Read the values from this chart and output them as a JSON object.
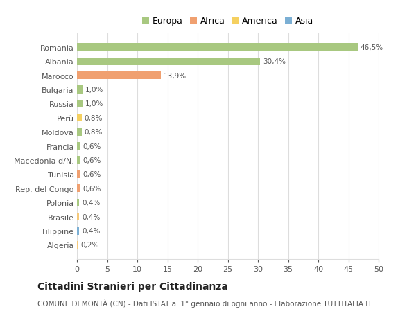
{
  "title": "Cittadini Stranieri per Cittadinanza",
  "subtitle": "COMUNE DI MONTÀ (CN) - Dati ISTAT al 1° gennaio di ogni anno - Elaborazione TUTTITALIA.IT",
  "categories": [
    "Algeria",
    "Filippine",
    "Brasile",
    "Polonia",
    "Rep. del Congo",
    "Tunisia",
    "Macedonia d/N.",
    "Francia",
    "Moldova",
    "Perù",
    "Russia",
    "Bulgaria",
    "Marocco",
    "Albania",
    "Romania"
  ],
  "values": [
    0.2,
    0.4,
    0.4,
    0.4,
    0.6,
    0.6,
    0.6,
    0.6,
    0.8,
    0.8,
    1.0,
    1.0,
    13.9,
    30.4,
    46.5
  ],
  "labels": [
    "0,2%",
    "0,4%",
    "0,4%",
    "0,4%",
    "0,6%",
    "0,6%",
    "0,6%",
    "0,6%",
    "0,8%",
    "0,8%",
    "1,0%",
    "1,0%",
    "13,9%",
    "30,4%",
    "46,5%"
  ],
  "colors": [
    "#f5c97a",
    "#7bafd4",
    "#f5c97a",
    "#a8c880",
    "#f0a070",
    "#f0a070",
    "#a8c880",
    "#a8c880",
    "#a8c880",
    "#f5d060",
    "#a8c880",
    "#a8c880",
    "#f0a070",
    "#a8c880",
    "#a8c880"
  ],
  "legend": [
    {
      "label": "Europa",
      "color": "#a8c880"
    },
    {
      "label": "Africa",
      "color": "#f0a070"
    },
    {
      "label": "America",
      "color": "#f5d060"
    },
    {
      "label": "Asia",
      "color": "#7bafd4"
    }
  ],
  "xlim": [
    0,
    50
  ],
  "xticks": [
    0,
    5,
    10,
    15,
    20,
    25,
    30,
    35,
    40,
    45,
    50
  ],
  "background_color": "#ffffff",
  "grid_color": "#dddddd",
  "bar_height": 0.55,
  "text_color": "#555555",
  "label_fontsize": 7.5,
  "tick_fontsize": 8,
  "title_fontsize": 10,
  "subtitle_fontsize": 7.5,
  "legend_fontsize": 9
}
